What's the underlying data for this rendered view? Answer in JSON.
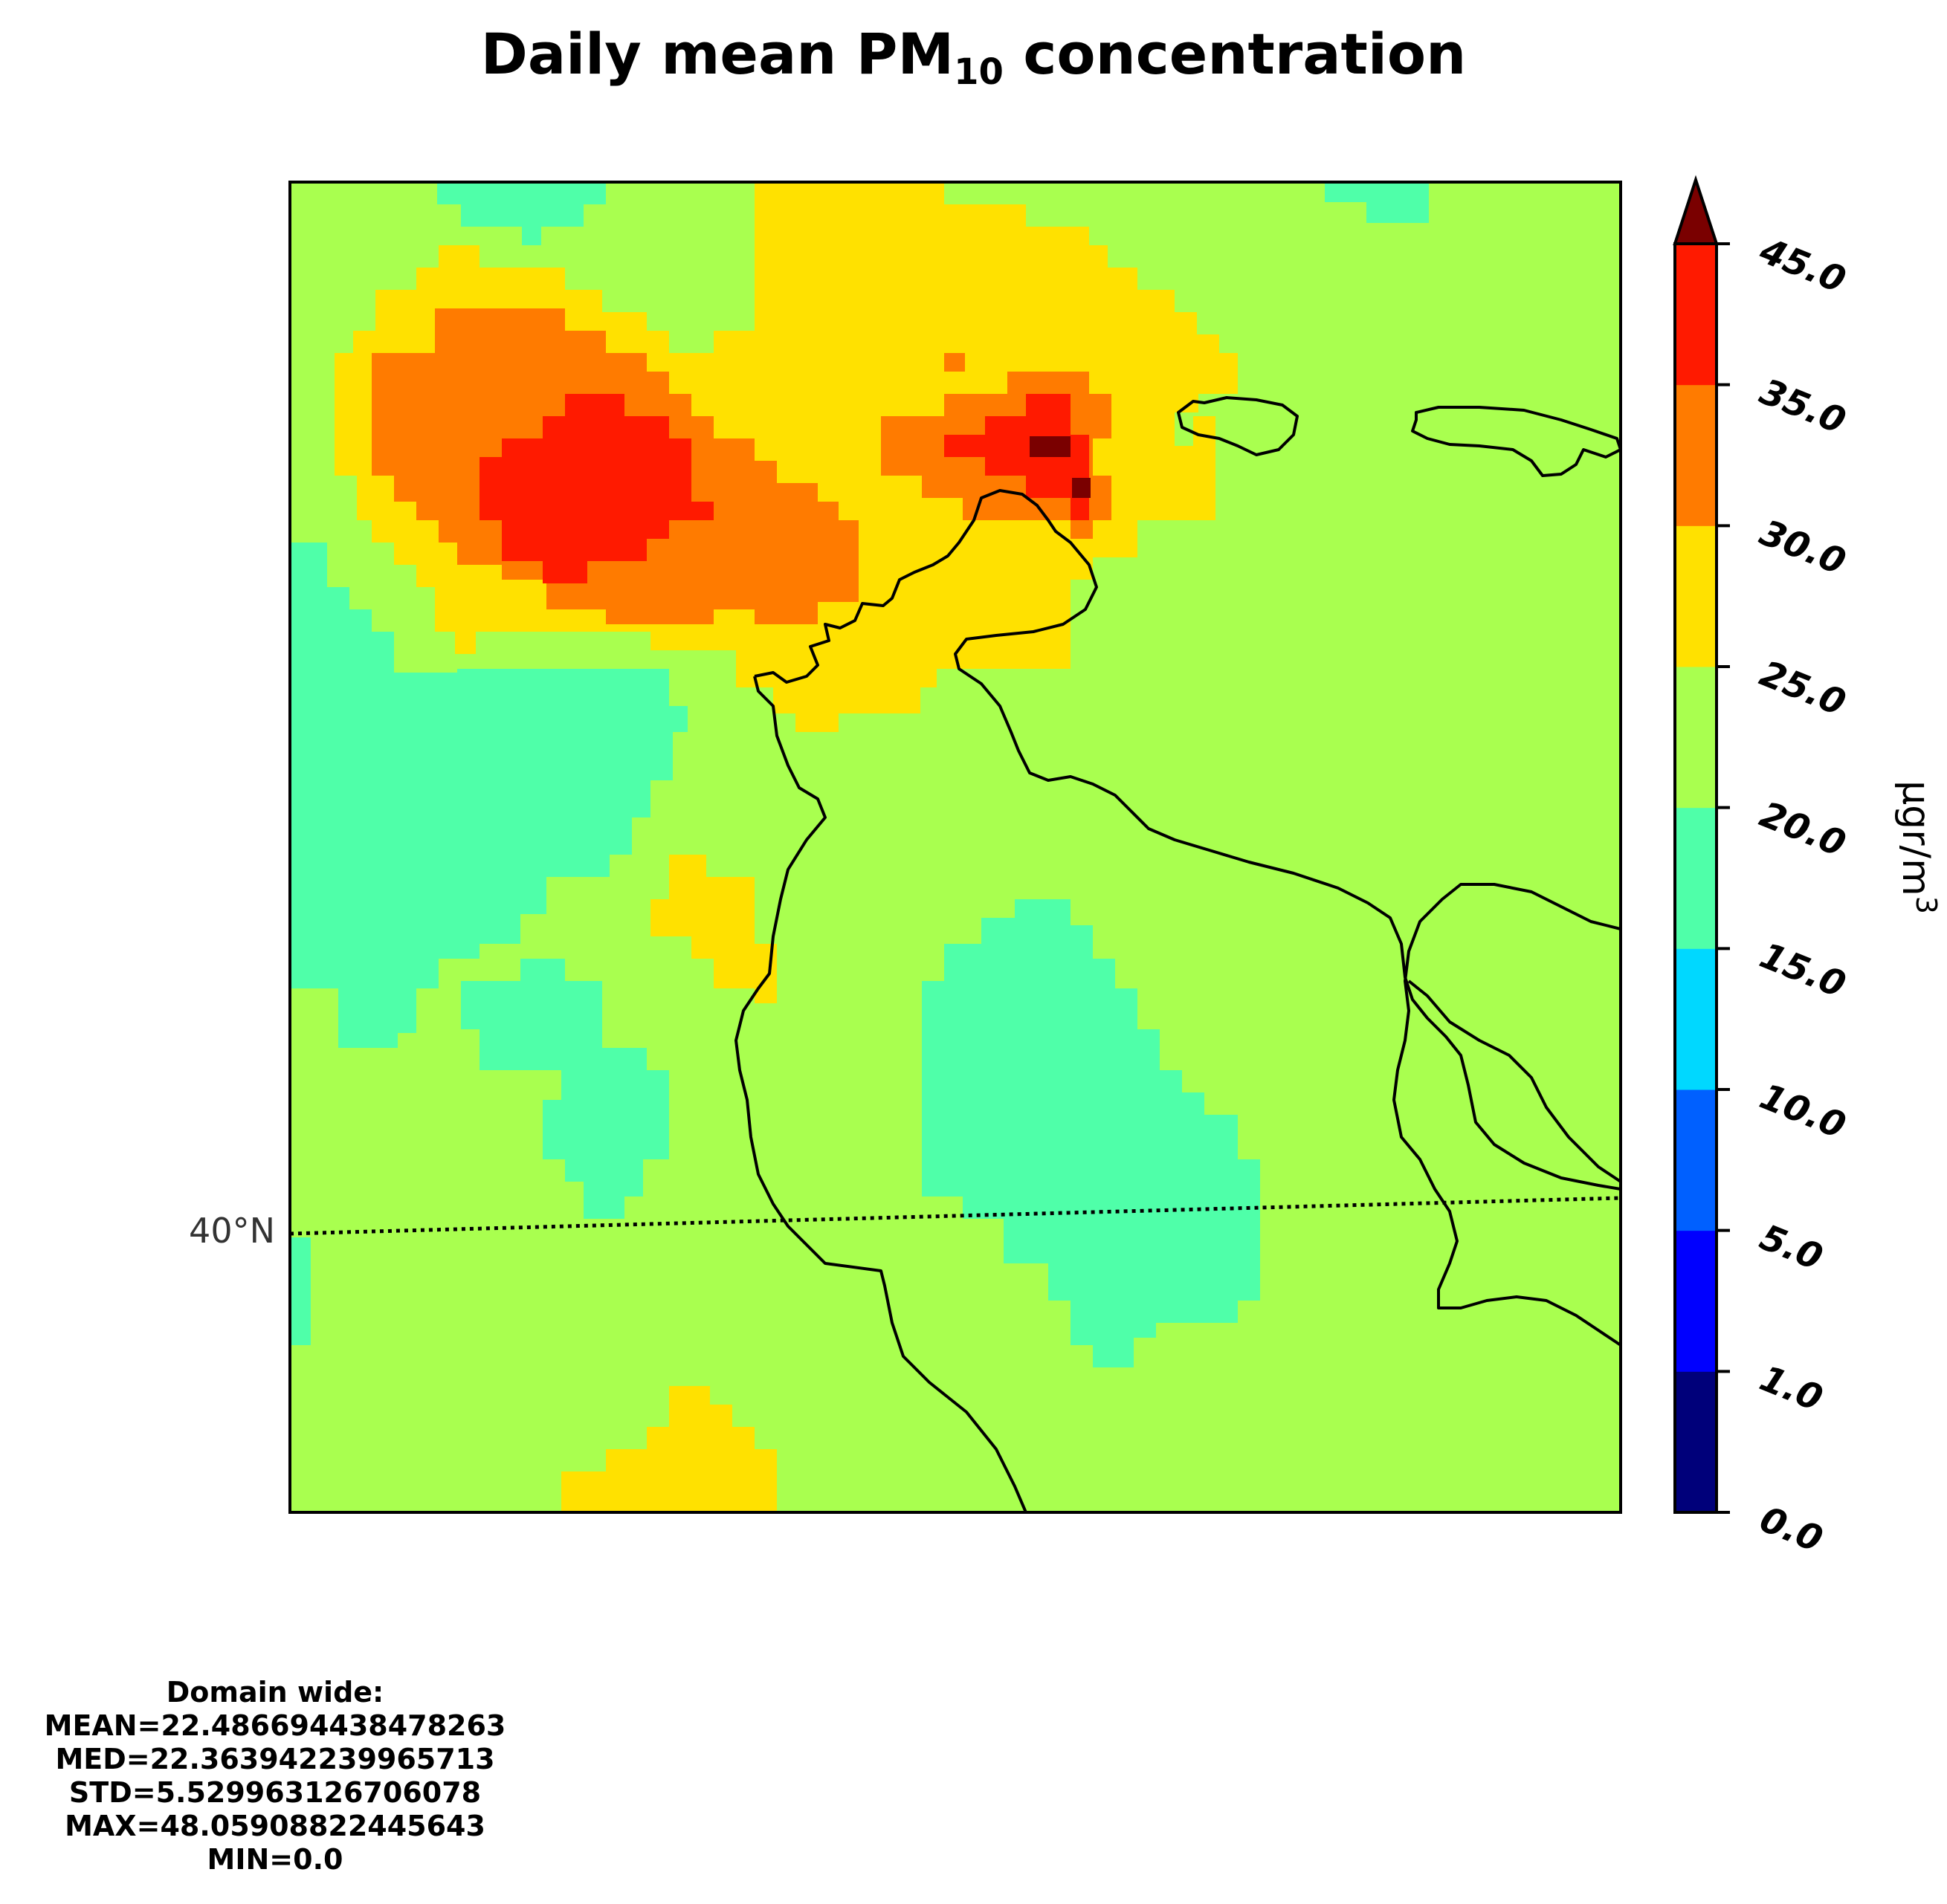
{
  "title": {
    "prefix": "Daily mean PM",
    "subscript": "10",
    "suffix": " concentration"
  },
  "map": {
    "latitude_label": "40°N",
    "field_colors": {
      "background_green": "#a9ff4f",
      "teal": "#4fffa9",
      "yellow": "#ffe100",
      "orange": "#ff7b00",
      "red": "#ff1a00",
      "dark_red": "#7a0000"
    }
  },
  "colorbar": {
    "unit": "μgr/m",
    "unit_superscript": "3",
    "ticks": [
      "0.0",
      "1.0",
      "5.0",
      "10.0",
      "15.0",
      "20.0",
      "25.0",
      "30.0",
      "35.0",
      "45.0"
    ],
    "bands": [
      {
        "from": 0.0,
        "to": 1.0,
        "color": "#00007a"
      },
      {
        "from": 1.0,
        "to": 5.0,
        "color": "#0000ff"
      },
      {
        "from": 5.0,
        "to": 10.0,
        "color": "#0060ff"
      },
      {
        "from": 10.0,
        "to": 15.0,
        "color": "#00d8ff"
      },
      {
        "from": 15.0,
        "to": 20.0,
        "color": "#4fffa9"
      },
      {
        "from": 20.0,
        "to": 25.0,
        "color": "#a9ff4f"
      },
      {
        "from": 25.0,
        "to": 30.0,
        "color": "#ffe100"
      },
      {
        "from": 30.0,
        "to": 35.0,
        "color": "#ff7b00"
      },
      {
        "from": 35.0,
        "to": 45.0,
        "color": "#ff1a00"
      }
    ],
    "over_color": "#7a0000"
  },
  "stats": {
    "heading": "Domain wide:",
    "mean": "MEAN=22.486694438478263",
    "median": "MED=22.363942239965713",
    "std": "STD=5.529963126706078",
    "max": "MAX=48.05908822445643",
    "min": "MIN=0.0"
  }
}
